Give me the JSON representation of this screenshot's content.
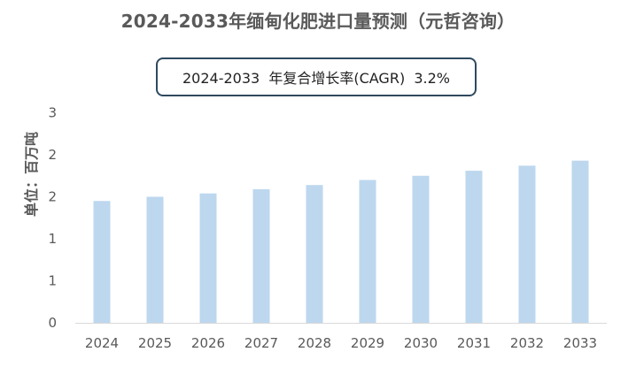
{
  "title": "2024-2033年缅甸化肥进口量预测（元哲咨询）",
  "annotation": "2024-2033  年复合增长率(CAGR)  3.2%",
  "chart_data": {
    "type": "bar",
    "categories": [
      "2024",
      "2025",
      "2026",
      "2027",
      "2028",
      "2029",
      "2030",
      "2031",
      "2032",
      "2033"
    ],
    "values": [
      1.45,
      1.5,
      1.54,
      1.59,
      1.64,
      1.7,
      1.75,
      1.81,
      1.87,
      1.93
    ],
    "title": "2024-2033年缅甸化肥进口量预测（元哲咨询）",
    "xlabel": "",
    "ylabel": "单位：百万吨",
    "ylim": [
      0,
      3
    ],
    "yticks": [
      {
        "value": 0,
        "label": "0"
      },
      {
        "value": 0.5,
        "label": "1"
      },
      {
        "value": 1.0,
        "label": "1"
      },
      {
        "value": 1.5,
        "label": "2"
      },
      {
        "value": 2.0,
        "label": "2"
      },
      {
        "value": 2.5,
        "label": "3"
      }
    ],
    "grid": false,
    "legend": "none",
    "colors": {
      "bar": "#bdd7ee",
      "axis": "#d9d9d9",
      "text": "#595959"
    }
  }
}
